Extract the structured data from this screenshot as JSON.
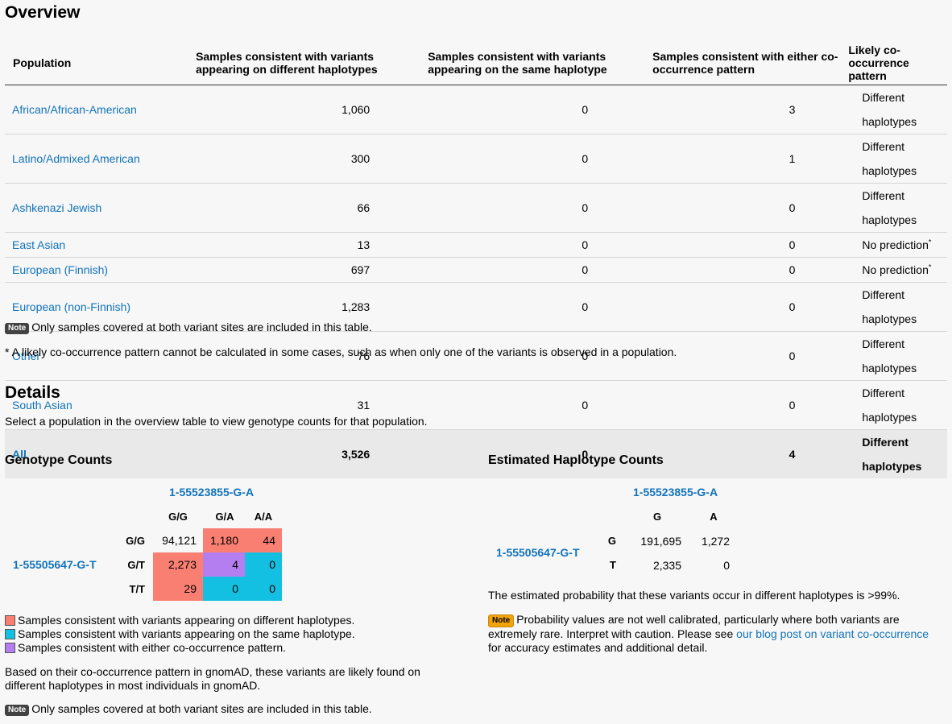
{
  "overview": {
    "title": "Overview",
    "columns": [
      "Population",
      "Samples consistent with variants appearing on different haplotypes",
      "Samples consistent with variants appearing on the same haplotype",
      "Samples consistent with either co-occurrence pattern",
      "Likely co-occurrence pattern"
    ],
    "rows": [
      {
        "population": "African/African-American",
        "diff": "1,060",
        "same": "0",
        "either": "3",
        "likely": "Different haplotypes",
        "star": ""
      },
      {
        "population": "Latino/Admixed American",
        "diff": "300",
        "same": "0",
        "either": "1",
        "likely": "Different haplotypes",
        "star": ""
      },
      {
        "population": "Ashkenazi Jewish",
        "diff": "66",
        "same": "0",
        "either": "0",
        "likely": "Different haplotypes",
        "star": ""
      },
      {
        "population": "East Asian",
        "diff": "13",
        "same": "0",
        "either": "0",
        "likely": "No prediction",
        "star": "*"
      },
      {
        "population": "European (Finnish)",
        "diff": "697",
        "same": "0",
        "either": "0",
        "likely": "No prediction",
        "star": "*"
      },
      {
        "population": "European (non-Finnish)",
        "diff": "1,283",
        "same": "0",
        "either": "0",
        "likely": "Different haplotypes",
        "star": ""
      },
      {
        "population": "Other",
        "diff": "76",
        "same": "0",
        "either": "0",
        "likely": "Different haplotypes",
        "star": ""
      },
      {
        "population": "South Asian",
        "diff": "31",
        "same": "0",
        "either": "0",
        "likely": "Different haplotypes",
        "star": ""
      }
    ],
    "total": {
      "population": "All",
      "diff": "3,526",
      "same": "0",
      "either": "4",
      "likely": "Different haplotypes"
    },
    "note_badge": "Note",
    "note_text": "Only samples covered at both variant sites are included in this table.",
    "footnote": "* A likely co-occurrence pattern cannot be calculated in some cases, such as when only one of the variants is observed in a population."
  },
  "details": {
    "title": "Details",
    "instruction": "Select a population in the overview table to view genotype counts for that population."
  },
  "genotype": {
    "title": "Genotype Counts",
    "variant_col": "1-55523855-G-A",
    "variant_row": "1-55505647-G-T",
    "col_headers": [
      "G/G",
      "G/A",
      "A/A"
    ],
    "row_headers": [
      "G/G",
      "G/T",
      "T/T"
    ],
    "cells": [
      [
        "94,121",
        "1,180",
        "44"
      ],
      [
        "2,273",
        "4",
        "0"
      ],
      [
        "29",
        "0",
        "0"
      ]
    ],
    "legend": [
      "Samples consistent with variants appearing on different haplotypes.",
      "Samples consistent with variants appearing on the same haplotype.",
      "Samples consistent with either co-occurrence pattern."
    ],
    "colors": {
      "different": "#fa7f73",
      "same": "#13c0e1",
      "either": "#b57ef0"
    },
    "summary": "Based on their co-occurrence pattern in gnomAD, these variants are likely found on different haplotypes in most individuals in gnomAD.",
    "note_badge": "Note",
    "note_text": "Only samples covered at both variant sites are included in this table."
  },
  "haplotype": {
    "title": "Estimated Haplotype Counts",
    "variant_col": "1-55523855-G-A",
    "variant_row": "1-55505647-G-T",
    "col_headers": [
      "G",
      "A"
    ],
    "row_headers": [
      "G",
      "T"
    ],
    "cells": [
      [
        "191,695",
        "1,272"
      ],
      [
        "2,335",
        "0"
      ]
    ],
    "probability": "The estimated probability that these variants occur in different haplotypes is >99%.",
    "note_badge": "Note",
    "note_text_1": "Probability values are not well calibrated, particularly where both variants are extremely rare. Interpret with caution. Please see",
    "note_link": "our blog post on variant co-occurrence",
    "note_text_2": "for accuracy estimates and additional detail."
  }
}
